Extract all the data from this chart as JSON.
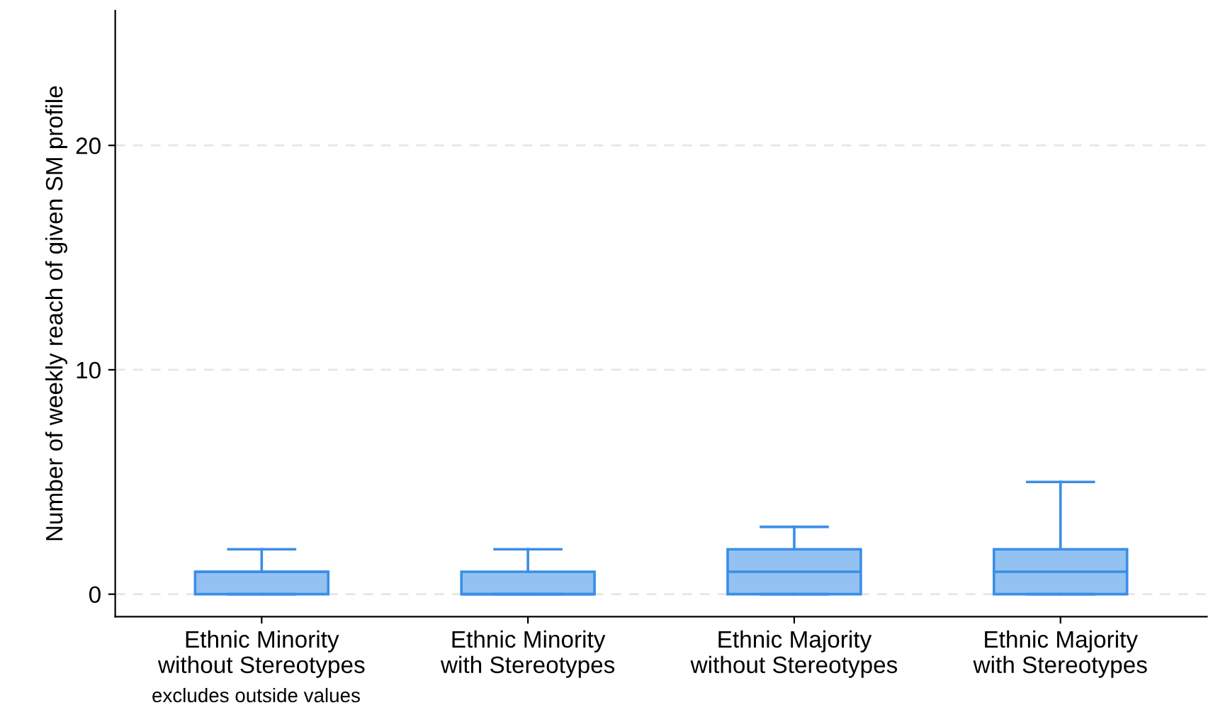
{
  "chart_data": {
    "type": "box",
    "ylabel": "Number of weekly reach of given SM profile",
    "categories": [
      "Ethnic Minority\nwithout Stereotypes",
      "Ethnic Minority\nwith Stereotypes",
      "Ethnic Majority\nwithout Stereotypes",
      "Ethnic Majority\nwith Stereotypes"
    ],
    "boxes": [
      {
        "low": 0,
        "q1": 0,
        "median": 1,
        "q3": 1,
        "high": 2
      },
      {
        "low": 0,
        "q1": 0,
        "median": 0,
        "q3": 1,
        "high": 2
      },
      {
        "low": 0,
        "q1": 0,
        "median": 1,
        "q3": 2,
        "high": 3
      },
      {
        "low": 0,
        "q1": 0,
        "median": 1,
        "q3": 2,
        "high": 5
      }
    ],
    "color": "#3a8ee6",
    "ylim": [
      -1,
      26
    ],
    "yticks": [
      0,
      10,
      20
    ],
    "grid": "y",
    "annotations": [
      "excludes outside values"
    ]
  }
}
